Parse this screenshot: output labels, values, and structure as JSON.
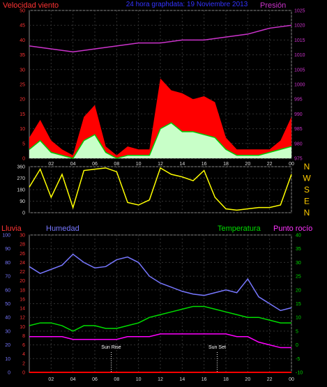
{
  "chart_data": [
    {
      "type": "area",
      "title": "24 hora graphdata: 19 Noviembre 2013",
      "left_axis_title": "Velocidad viento",
      "right_axis_title": "Presión",
      "left_ticks": [
        "0",
        "5",
        "10",
        "15",
        "20",
        "25",
        "30",
        "35",
        "40",
        "45",
        "50"
      ],
      "right_ticks": [
        "975",
        "980",
        "985",
        "990",
        "995",
        "1000",
        "1005",
        "1010",
        "1015",
        "1020",
        "1025"
      ],
      "x_ticks": [
        "02",
        "04",
        "06",
        "08",
        "10",
        "12",
        "14",
        "16",
        "18",
        "20",
        "22",
        "00"
      ],
      "ylim_wind": [
        0,
        50
      ],
      "ylim_pressure": [
        975,
        1025
      ],
      "colors": {
        "gust": "#ff0000",
        "average": "#00cc00",
        "wind_light": "#c8ffc8",
        "pressure": "#cc33cc"
      },
      "series": [
        {
          "name": "gust",
          "x": [
            0,
            1,
            2,
            3,
            4,
            5,
            6,
            7,
            8,
            9,
            10,
            11,
            12,
            13,
            14,
            15,
            16,
            17,
            18,
            19,
            20,
            21,
            22,
            23,
            24
          ],
          "values": [
            7,
            13,
            6,
            3,
            1,
            14,
            18,
            4,
            1,
            4,
            3,
            3,
            27,
            23,
            22,
            20,
            21,
            19,
            7,
            3,
            3,
            3,
            3,
            6,
            14
          ]
        },
        {
          "name": "average",
          "x": [
            0,
            1,
            2,
            3,
            4,
            5,
            6,
            7,
            8,
            9,
            10,
            11,
            12,
            13,
            14,
            15,
            16,
            17,
            18,
            19,
            20,
            21,
            22,
            23,
            24
          ],
          "values": [
            3,
            6,
            2,
            1,
            0,
            6,
            8,
            2,
            0,
            1,
            1,
            1,
            10,
            12,
            9,
            9,
            8,
            7,
            3,
            1,
            1,
            1,
            2,
            3,
            4
          ]
        },
        {
          "name": "pressure",
          "x": [
            0,
            2,
            4,
            6,
            8,
            10,
            12,
            14,
            16,
            18,
            20,
            22,
            24
          ],
          "values": [
            1013,
            1012,
            1011,
            1012,
            1013,
            1014,
            1014,
            1015,
            1015,
            1016,
            1017,
            1019,
            1020
          ]
        }
      ]
    },
    {
      "type": "line",
      "left_ticks": [
        "0",
        "90",
        "180",
        "270",
        "360"
      ],
      "right_labels": [
        "N",
        "W",
        "S",
        "E",
        "N"
      ],
      "ylim": [
        0,
        360
      ],
      "color": "#ffff00",
      "series": [
        {
          "name": "direction",
          "x": [
            0,
            1,
            2,
            3,
            4,
            5,
            6,
            7,
            8,
            9,
            10,
            11,
            12,
            13,
            14,
            15,
            16,
            17,
            18,
            19,
            20,
            21,
            22,
            23,
            24
          ],
          "values": [
            200,
            340,
            120,
            300,
            40,
            330,
            340,
            350,
            320,
            80,
            60,
            100,
            350,
            300,
            280,
            250,
            330,
            120,
            30,
            20,
            30,
            40,
            40,
            60,
            300
          ]
        }
      ]
    },
    {
      "type": "line",
      "labels": {
        "rain": "Lluvia",
        "humidity": "Humedad",
        "temperature": "Temperatura",
        "dewpoint": "Punto rocío"
      },
      "rain_ticks": [
        "0",
        "10",
        "20",
        "30",
        "40",
        "50",
        "60",
        "70",
        "80",
        "90",
        "100"
      ],
      "humidity_ticks": [
        "0",
        "2",
        "4",
        "6",
        "8",
        "10",
        "12",
        "14",
        "16",
        "18",
        "20",
        "22",
        "24",
        "26",
        "28",
        "30"
      ],
      "temp_ticks": [
        "-10",
        "-5",
        "0",
        "5",
        "10",
        "15",
        "20",
        "25",
        "30",
        "35",
        "40"
      ],
      "x_ticks": [
        "02",
        "04",
        "06",
        "08",
        "10",
        "12",
        "14",
        "16",
        "18",
        "20",
        "22",
        "00"
      ],
      "sun_rise_label": "Sun Rise",
      "sun_set_label": "Sun Set",
      "sun_rise_hour": 7.5,
      "sun_set_hour": 17.2,
      "ylim_humidity": [
        0,
        100
      ],
      "ylim_temperature": [
        -10,
        40
      ],
      "colors": {
        "humidity": "#7777ff",
        "temperature": "#00dd00",
        "dewpoint": "#ff00ff",
        "rain": "#ff0000"
      },
      "series": [
        {
          "name": "humidity",
          "x": [
            0,
            1,
            2,
            3,
            4,
            5,
            6,
            7,
            8,
            9,
            10,
            11,
            12,
            13,
            14,
            15,
            16,
            17,
            18,
            19,
            20,
            21,
            22,
            23,
            24
          ],
          "values": [
            77,
            72,
            75,
            78,
            86,
            80,
            76,
            77,
            82,
            84,
            80,
            70,
            65,
            62,
            59,
            57,
            56,
            58,
            60,
            58,
            68,
            55,
            50,
            45,
            47
          ]
        },
        {
          "name": "temperature",
          "x": [
            0,
            1,
            2,
            3,
            4,
            5,
            6,
            7,
            8,
            9,
            10,
            11,
            12,
            13,
            14,
            15,
            16,
            17,
            18,
            19,
            20,
            21,
            22,
            23,
            24
          ],
          "values": [
            7,
            8,
            8,
            7,
            5,
            7,
            7,
            6,
            6,
            7,
            8,
            10,
            11,
            12,
            13,
            14,
            14,
            13,
            12,
            11,
            10,
            10,
            9,
            8,
            8
          ]
        },
        {
          "name": "dewpoint",
          "x": [
            0,
            1,
            2,
            3,
            4,
            5,
            6,
            7,
            8,
            9,
            10,
            11,
            12,
            13,
            14,
            15,
            16,
            17,
            18,
            19,
            20,
            21,
            22,
            23,
            24
          ],
          "values": [
            3,
            3,
            3,
            3,
            2,
            2,
            2,
            2,
            2,
            3,
            3,
            3,
            4,
            4,
            4,
            4,
            4,
            4,
            4,
            3,
            3,
            1,
            0,
            -1,
            -1
          ]
        },
        {
          "name": "rain",
          "x": [
            0,
            24
          ],
          "values": [
            0,
            0
          ]
        }
      ]
    }
  ]
}
